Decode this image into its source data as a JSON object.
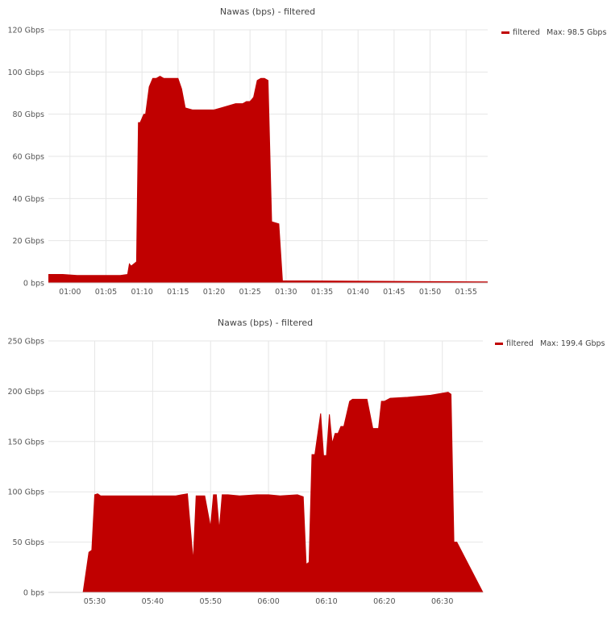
{
  "chart_data": [
    {
      "type": "area",
      "title": "Nawas (bps) - filtered",
      "y_unit": "Gbps",
      "ylim": [
        0,
        120
      ],
      "y_ticks": [
        0,
        20,
        40,
        60,
        80,
        100,
        120
      ],
      "y_tick_labels": [
        "0 bps",
        "20 Gbps",
        "40 Gbps",
        "60 Gbps",
        "80 Gbps",
        "100 Gbps",
        "120 Gbps"
      ],
      "xlim": [
        "00:57",
        "01:58"
      ],
      "x_tick_labels": [
        "01:00",
        "01:05",
        "01:10",
        "01:15",
        "01:20",
        "01:25",
        "01:30",
        "01:35",
        "01:40",
        "01:45",
        "01:50",
        "01:55"
      ],
      "grid": true,
      "legend_position": "top-right",
      "series": [
        {
          "name": "filtered",
          "color": "#c00000",
          "legend_label": "filtered",
          "legend_max": "Max: 98.5 Gbps",
          "x": [
            "00:57:00",
            "00:59:00",
            "01:01:00",
            "01:04:00",
            "01:07:00",
            "01:08:00",
            "01:08:15",
            "01:08:30",
            "01:09:15",
            "01:09:30",
            "01:09:45",
            "01:10:15",
            "01:10:30",
            "01:11:00",
            "01:11:30",
            "01:12:00",
            "01:12:30",
            "01:13:00",
            "01:14:00",
            "01:15:00",
            "01:15:30",
            "01:16:00",
            "01:17:00",
            "01:18:00",
            "01:20:00",
            "01:21:00",
            "01:22:00",
            "01:23:00",
            "01:24:00",
            "01:24:30",
            "01:25:00",
            "01:25:30",
            "01:26:00",
            "01:26:30",
            "01:27:00",
            "01:27:30",
            "01:28:00",
            "01:29:00",
            "01:29:30",
            "01:58:00"
          ],
          "values": [
            4,
            4,
            3.5,
            3.5,
            3.5,
            4,
            9,
            8,
            10,
            76,
            76,
            80,
            80,
            93,
            97,
            97,
            98,
            97,
            97,
            97,
            92,
            83,
            82,
            82,
            82,
            83,
            84,
            85,
            85,
            86,
            86,
            88,
            96,
            97,
            97,
            96,
            29,
            28,
            1,
            0.5
          ]
        }
      ]
    },
    {
      "type": "area",
      "title": "Nawas (bps) - filtered",
      "y_unit": "Gbps",
      "ylim": [
        0,
        250
      ],
      "y_ticks": [
        0,
        50,
        100,
        150,
        200,
        250
      ],
      "y_tick_labels": [
        "0 bps",
        "50 Gbps",
        "100 Gbps",
        "150 Gbps",
        "200 Gbps",
        "250 Gbps"
      ],
      "xlim": [
        "05:22",
        "06:37"
      ],
      "x_tick_labels": [
        "05:30",
        "05:40",
        "05:50",
        "06:00",
        "06:10",
        "06:20",
        "06:30"
      ],
      "grid": true,
      "legend_position": "top-right",
      "series": [
        {
          "name": "filtered",
          "color": "#c00000",
          "legend_label": "filtered",
          "legend_max": "Max: 199.4 Gbps",
          "x": [
            "05:22:00",
            "05:28:00",
            "05:29:00",
            "05:29:30",
            "05:30:00",
            "05:30:30",
            "05:31:00",
            "05:33:00",
            "05:36:00",
            "05:40:00",
            "05:44:00",
            "05:45:00",
            "05:46:00",
            "05:47:00",
            "05:47:30",
            "05:48:00",
            "05:48:30",
            "05:49:00",
            "05:50:00",
            "05:50:30",
            "05:51:00",
            "05:51:30",
            "05:52:00",
            "05:52:30",
            "05:53:00",
            "05:55:00",
            "05:58:00",
            "06:00:00",
            "06:02:00",
            "06:05:00",
            "06:06:00",
            "06:06:30",
            "06:07:00",
            "06:07:30",
            "06:08:00",
            "06:09:00",
            "06:09:30",
            "06:10:00",
            "06:10:30",
            "06:11:00",
            "06:11:30",
            "06:12:00",
            "06:12:30",
            "06:13:00",
            "06:14:00",
            "06:14:30",
            "06:15:00",
            "06:16:00",
            "06:17:00",
            "06:18:00",
            "06:19:00",
            "06:19:30",
            "06:20:00",
            "06:21:00",
            "06:24:00",
            "06:26:00",
            "06:28:00",
            "06:29:00",
            "06:30:00",
            "06:31:00",
            "06:31:30",
            "06:32:00",
            "06:32:30",
            "06:37:00"
          ],
          "values": [
            0,
            0,
            40,
            42,
            97,
            98,
            96,
            96,
            96,
            96,
            96,
            97,
            98,
            31,
            96,
            96,
            96,
            96,
            65,
            97,
            97,
            62,
            97,
            97,
            97,
            96,
            97,
            97,
            96,
            97,
            95,
            28,
            30,
            137,
            137,
            178,
            136,
            136,
            177,
            148,
            158,
            158,
            165,
            165,
            190,
            192,
            192,
            192,
            192,
            163,
            163,
            190,
            190,
            193,
            194,
            195,
            196,
            197,
            198,
            199,
            197,
            50,
            50,
            0
          ]
        }
      ]
    }
  ]
}
